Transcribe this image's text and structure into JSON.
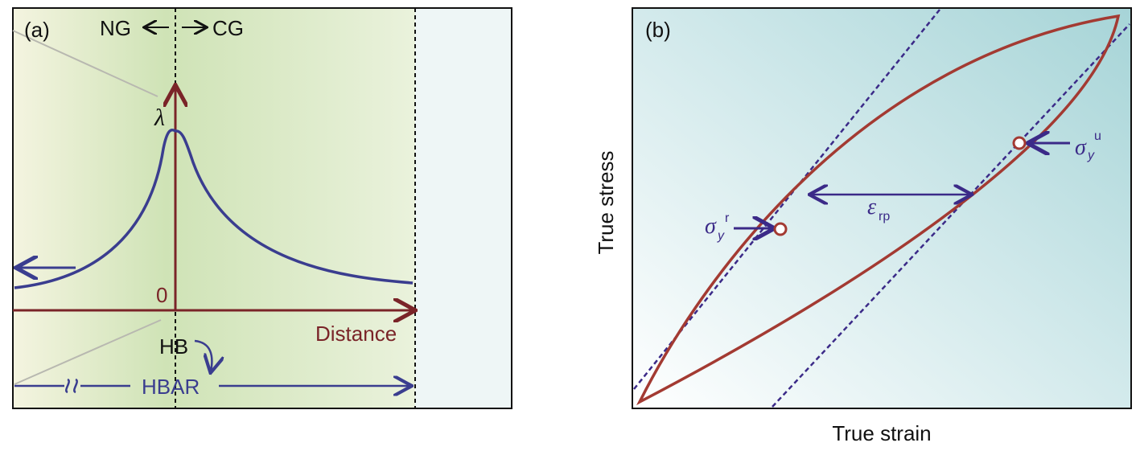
{
  "panel_a": {
    "tag": "(a)",
    "ng": "NG",
    "cg": "CG",
    "lambda": "λ",
    "zero": "0",
    "distance": "Distance",
    "hb": "HB",
    "hbar": "HBAR",
    "colors": {
      "axis": "#7a2428",
      "curve": "#3a3d8f",
      "bg_green": "#cfe3b6",
      "bg_right": "#eef6f6"
    }
  },
  "panel_b": {
    "tag": "(b)",
    "xlabel": "True strain",
    "ylabel": "True stress",
    "sigma": "σ",
    "y_sub": "y",
    "r_sup": "r",
    "u_sup": "u",
    "epsilon": "ε",
    "rp_sub": "rp",
    "colors": {
      "loop": "#a33a32",
      "arrow": "#3a3d8f",
      "bg_teal": "#a8d6d8"
    }
  }
}
